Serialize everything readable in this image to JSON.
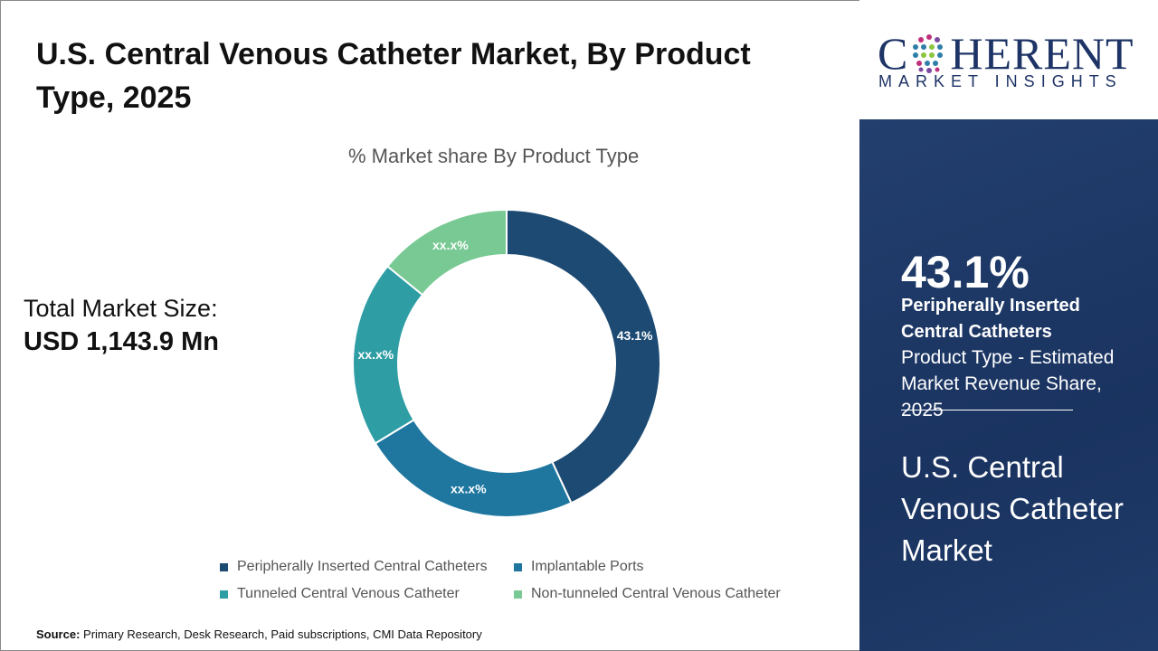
{
  "header": {
    "title": "U.S. Central Venous Catheter Market, By Product Type, 2025"
  },
  "market": {
    "label": "Total Market Size:",
    "value": "USD 1,143.9 Mn"
  },
  "logo": {
    "top": "COHERENT",
    "bottom": "MARKET INSIGHTS"
  },
  "panel": {
    "highlight": "43.1%",
    "segment": "Peripherally Inserted Central Catheters",
    "description": "Product Type - Estimated Market Revenue Share, 2025",
    "market_name": "U.S. Central Venous Catheter Market",
    "bg_color": "#1e3a66"
  },
  "source": {
    "label": "Source:",
    "text": "Primary Research, Desk Research, Paid subscriptions, CMI Data Repository"
  },
  "chart_data": {
    "type": "pie",
    "subtype": "donut",
    "title": "% Market share By Product Type",
    "legend_position": "bottom",
    "categories": [
      "Peripherally Inserted Central Catheters",
      "Implantable Ports",
      "Tunneled Central Venous Catheter",
      "Non-tunneled Central Venous Catheter"
    ],
    "values": [
      43.1,
      23.2,
      19.6,
      14.1
    ],
    "data_labels": [
      "43.1%",
      "xx.x%",
      "xx.x%",
      "xx.x%"
    ],
    "colors": [
      "#1c4a73",
      "#1f77a0",
      "#2e9da4",
      "#78c993"
    ]
  }
}
